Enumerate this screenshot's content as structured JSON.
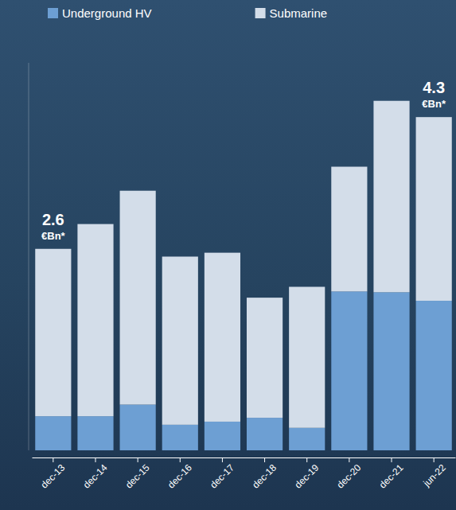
{
  "chart_data": {
    "type": "bar",
    "stacked": true,
    "categories": [
      "dec-13",
      "dec-14",
      "dec-15",
      "dec-16",
      "dec-17",
      "dec-18",
      "dec-19",
      "dec-20",
      "dec-21",
      "jun-22"
    ],
    "series": [
      {
        "name": "Underground HV",
        "color": "#6d9fd3",
        "values": [
          0.44,
          0.44,
          0.59,
          0.33,
          0.37,
          0.42,
          0.29,
          2.05,
          2.04,
          1.93
        ]
      },
      {
        "name": "Submarine",
        "color": "#d3dde9",
        "values": [
          2.16,
          2.48,
          2.76,
          2.17,
          2.18,
          1.55,
          1.82,
          1.61,
          2.47,
          2.37
        ]
      }
    ],
    "ylim": [
      0,
      5
    ],
    "tick_labels": "x",
    "legend": "top",
    "annotations": [
      {
        "category": "dec-13",
        "value": 2.6,
        "label": "2.6",
        "text": "€Bn*"
      },
      {
        "category": "jun-22",
        "value": 4.3,
        "label": "4.3",
        "text": "€Bn*"
      }
    ]
  }
}
